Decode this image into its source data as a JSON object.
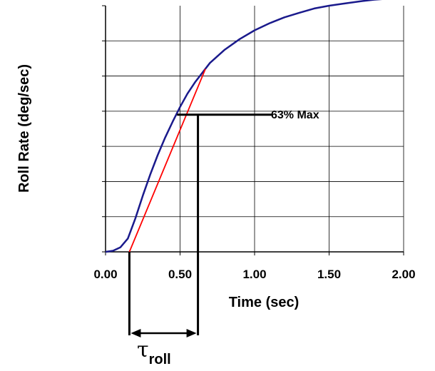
{
  "chart_data": {
    "type": "line",
    "title": "",
    "xlabel": "Time (sec)",
    "ylabel": "Roll Rate (deg/sec)",
    "xlim": [
      0,
      2.0
    ],
    "ylim": [
      0,
      7
    ],
    "x_ticks": [
      "0.00",
      "0.50",
      "1.00",
      "1.50",
      "2.00"
    ],
    "y_tick_count": 7,
    "y_tick_labels_shown": false,
    "grid": true,
    "series": [
      {
        "color": "#1a1a8c",
        "x": [
          0.0,
          0.05,
          0.1,
          0.15,
          0.2,
          0.25,
          0.3,
          0.35,
          0.4,
          0.45,
          0.5,
          0.55,
          0.6,
          0.7,
          0.8,
          0.9,
          1.0,
          1.1,
          1.2,
          1.3,
          1.4,
          1.5,
          1.6,
          1.7,
          1.8,
          1.9,
          2.0
        ],
        "y": [
          0.0,
          0.03,
          0.13,
          0.38,
          0.95,
          1.6,
          2.2,
          2.75,
          3.25,
          3.7,
          4.12,
          4.5,
          4.82,
          5.37,
          5.75,
          6.05,
          6.3,
          6.5,
          6.67,
          6.8,
          6.92,
          7.0,
          7.06,
          7.12,
          7.17,
          7.2,
          7.22
        ]
      }
    ],
    "annotations": {
      "tangent_line": {
        "color": "#ff0000",
        "x_start": 0.16,
        "y_start": 0.0,
        "x_end": 0.67,
        "y_end": 5.2
      },
      "level_63": {
        "label": "63% Max",
        "y": 3.9,
        "x_start": 0.48,
        "x_end": 1.12
      },
      "tau_marker": {
        "x_left": 0.16,
        "x_right": 0.62,
        "label": "τ",
        "sub": "roll"
      }
    }
  }
}
